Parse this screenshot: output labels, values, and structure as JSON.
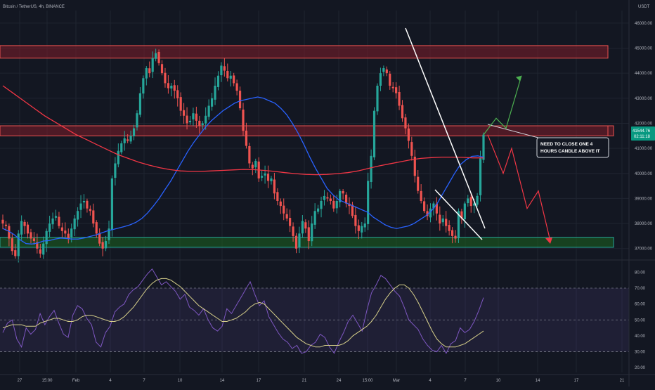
{
  "header": {
    "symbol_title": "Bitcoin / TetherUS, 4h, BINANCE",
    "currency": "USDT"
  },
  "price_badge": {
    "price": "41544.76",
    "countdown": "02:11:18"
  },
  "annotation_text": [
    "NEED TO CLOSE ONE 4",
    "HOURS CANDLE ABOVE IT"
  ],
  "colors": {
    "background": "#131722",
    "up_candle": "#26a69a",
    "down_candle": "#ef5350",
    "ma_fast": "#2962ff",
    "ma_slow": "#f23645",
    "resistance_zone": "#7f1d2a",
    "support_zone": "#1b5e20",
    "rsi_line": "#7e57c2",
    "rsi_ma": "#d7d08a",
    "projection_up": "#4caf50",
    "projection_down": "#f23645"
  },
  "chart_data": [
    {
      "type": "candlestick",
      "title": "Bitcoin / TetherUS, 4h, BINANCE",
      "x_ticks": [
        "27",
        "15:00",
        "Feb",
        "4",
        "7",
        "10",
        "14",
        "17",
        "21",
        "24",
        "15:00",
        "Mar",
        "4",
        "7",
        "10",
        "14",
        "17",
        "21"
      ],
      "y_ticks": [
        "46000.00",
        "45000.00",
        "44000.00",
        "43000.00",
        "42000.00",
        "41000.00",
        "40000.00",
        "39000.00",
        "38000.00",
        "37000.00"
      ],
      "ylim": [
        36600,
        46500
      ],
      "resistance_zones": [
        [
          44600,
          45100
        ],
        [
          41500,
          41900
        ]
      ],
      "support_zones": [
        [
          37050,
          37450
        ]
      ],
      "series": [
        {
          "type": "candlestick",
          "close": [
            38000,
            37900,
            37400,
            36900,
            36700,
            37600,
            38100,
            37900,
            37600,
            37400,
            37300,
            37000,
            36800,
            37200,
            37700,
            38000,
            38200,
            38300,
            37900,
            37700,
            37600,
            37400,
            37800,
            38200,
            38500,
            38800,
            38900,
            38600,
            38500,
            38000,
            37600,
            37200,
            37000,
            37300,
            37800,
            39800,
            40400,
            40900,
            41200,
            41400,
            41300,
            41500,
            41800,
            42400,
            43200,
            43800,
            44200,
            44000,
            44600,
            44800,
            44400,
            44000,
            43600,
            43400,
            43500,
            43300,
            43000,
            42500,
            42300,
            42000,
            42100,
            42400,
            42100,
            41900,
            42000,
            42300,
            42700,
            43000,
            43500,
            43900,
            44300,
            44100,
            43800,
            43900,
            43600,
            43300,
            42600,
            41700,
            41100,
            40400,
            40200,
            40500,
            39800,
            39900,
            40000,
            39700,
            39800,
            39200,
            38900,
            38700,
            38400,
            38200,
            37900,
            37500,
            37000,
            37600,
            38100,
            37800,
            37300,
            38000,
            38500,
            38600,
            38900,
            39100,
            39000,
            38900,
            38600,
            38900,
            39300,
            39200,
            38800,
            38700,
            38300,
            37900,
            37700,
            37900,
            38000,
            39700,
            40700,
            42500,
            43500,
            44000,
            44200,
            44000,
            43500,
            43400,
            43200,
            42700,
            42200,
            41800,
            41300,
            40700,
            39900,
            39300,
            38900,
            38500,
            38300,
            38600,
            38800,
            38400,
            38000,
            38200,
            37900,
            37700,
            37500,
            37400,
            38500,
            38200,
            38800,
            39000,
            38700,
            38800,
            39100,
            40600,
            41545
          ]
        },
        {
          "type": "line",
          "name": "",
          "values": [
            37800,
            37700,
            37550,
            37350,
            37200,
            37180,
            37220,
            37300,
            37320,
            37380,
            37420,
            37400,
            37380,
            37380,
            37420,
            37480,
            37540,
            37620,
            37700,
            37760,
            37820,
            37880,
            37950,
            38050,
            38200,
            38420,
            38700,
            39000,
            39350,
            39700,
            40100,
            40500,
            40900,
            41250,
            41550,
            41850,
            42100,
            42300,
            42500,
            42650,
            42800,
            42900,
            42950,
            43000,
            43050,
            43000,
            42900,
            42800,
            42600,
            42350,
            42000,
            41600,
            41150,
            40650,
            40200,
            39800,
            39400,
            39150,
            38950,
            38850,
            38750,
            38650,
            38550,
            38450,
            38250,
            38100,
            37950,
            37850,
            37800,
            37850,
            37900,
            38000,
            38150,
            38300,
            38500,
            38800,
            39200,
            39600,
            40000,
            40350,
            40550,
            40680,
            40700,
            40650
          ]
        },
        {
          "type": "line",
          "name": "",
          "values": [
            43500,
            43200,
            42900,
            42600,
            42300,
            42050,
            41800,
            41550,
            41350,
            41150,
            40950,
            40750,
            40600,
            40450,
            40330,
            40230,
            40150,
            40100,
            40080,
            40080,
            40100,
            40120,
            40140,
            40160,
            40150,
            40120,
            40080,
            40030,
            39990,
            39960,
            39950,
            39960,
            39990,
            40030,
            40100,
            40200,
            40300,
            40380,
            40460,
            40540,
            40600,
            40630,
            40650,
            40650,
            40640,
            40620,
            40620
          ]
        }
      ],
      "projections": {
        "up": [
          41545,
          42200,
          41800,
          43900
        ],
        "down": [
          41545,
          40000,
          41000,
          38600,
          39300,
          37300
        ]
      }
    },
    {
      "type": "line",
      "title": "",
      "y_ticks": [
        "80.00",
        "70.00",
        "60.00",
        "50.00",
        "40.00",
        "30.00",
        "20.00"
      ],
      "ylim": [
        17,
        85
      ],
      "bands": [
        70,
        50,
        30
      ],
      "series": [
        {
          "name": "",
          "values": [
            42,
            48,
            50,
            38,
            33,
            45,
            41,
            44,
            54,
            47,
            52,
            56,
            48,
            41,
            39,
            53,
            59,
            57,
            51,
            47,
            36,
            33,
            42,
            46,
            55,
            58,
            60,
            66,
            69,
            71,
            75,
            79,
            82,
            77,
            72,
            74,
            71,
            68,
            63,
            66,
            58,
            56,
            53,
            57,
            50,
            45,
            43,
            46,
            57,
            54,
            59,
            64,
            69,
            74,
            66,
            59,
            62,
            52,
            47,
            42,
            38,
            36,
            32,
            34,
            29,
            30,
            34,
            36,
            41,
            39,
            33,
            29,
            36,
            42,
            49,
            53,
            48,
            43,
            56,
            67,
            72,
            78,
            76,
            72,
            68,
            65,
            58,
            50,
            47,
            44,
            38,
            34,
            31,
            30,
            34,
            29,
            35,
            37,
            45,
            42,
            44,
            49,
            56,
            64
          ]
        },
        {
          "name": "",
          "values": [
            45,
            46,
            47,
            47,
            47,
            46,
            46,
            46,
            48,
            49,
            50,
            51,
            51,
            50,
            49,
            49,
            50,
            52,
            53,
            53,
            52,
            51,
            50,
            49,
            49,
            50,
            52,
            55,
            58,
            62,
            66,
            70,
            73,
            75,
            76,
            76,
            75,
            73,
            71,
            68,
            65,
            62,
            59,
            57,
            55,
            53,
            51,
            49,
            49,
            50,
            51,
            53,
            55,
            58,
            60,
            61,
            60,
            57,
            54,
            51,
            48,
            45,
            42,
            39,
            37,
            35,
            34,
            33,
            33,
            34,
            34,
            34,
            34,
            35,
            37,
            40,
            42,
            44,
            46,
            49,
            53,
            58,
            63,
            67,
            70,
            72,
            72,
            70,
            66,
            61,
            55,
            49,
            43,
            38,
            35,
            33,
            33,
            33,
            34,
            35,
            37,
            39,
            41,
            43
          ]
        }
      ]
    }
  ]
}
